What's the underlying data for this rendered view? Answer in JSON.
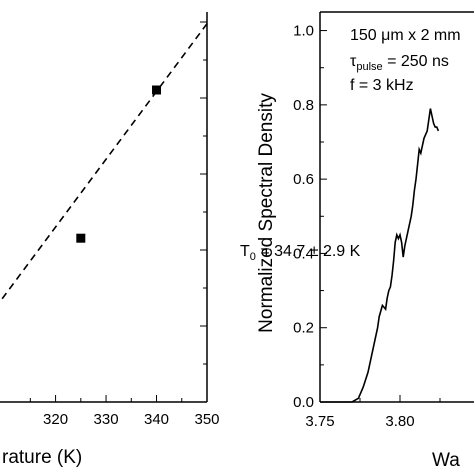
{
  "chart_data": [
    {
      "type": "scatter",
      "title": "",
      "xlabel": "rature (K)",
      "ylabel": "",
      "xlim": [
        308,
        350
      ],
      "ylim": [
        0,
        1
      ],
      "x_ticks": [
        "320",
        "330",
        "340",
        "350"
      ],
      "points": [
        {
          "x": 325,
          "y": 0.42
        },
        {
          "x": 340,
          "y": 0.8
        }
      ],
      "fit_line": {
        "style": "dashed",
        "x": [
          308,
          350
        ],
        "y": [
          0.24,
          0.97
        ]
      },
      "annotation": {
        "text": "T",
        "sub": "0",
        "rest": " = 34.7 ± 2.9 K"
      }
    },
    {
      "type": "line",
      "title": "",
      "xlabel": "Wa",
      "ylabel": "Normalized Spectral Density",
      "xlim": [
        3.75,
        3.85
      ],
      "ylim": [
        0,
        1.05
      ],
      "x_ticks": [
        "3.75",
        "3.80"
      ],
      "y_ticks": [
        "0.0",
        "0.2",
        "0.4",
        "0.6",
        "0.8",
        "1.0"
      ],
      "annotations": [
        {
          "id": "dim",
          "parts": [
            "150 ",
            "μ",
            "m x 2 mm"
          ]
        },
        {
          "id": "pulse",
          "parts": [
            "τ",
            "pulse",
            " = 250 ns"
          ]
        },
        {
          "id": "freq",
          "parts": [
            "f = 3 kHz"
          ]
        }
      ],
      "series": [
        {
          "x": [
            3.75,
            3.765,
            3.77,
            3.774,
            3.777,
            3.78,
            3.782,
            3.784,
            3.786,
            3.787,
            3.789,
            3.791,
            3.792,
            3.793,
            3.794,
            3.795,
            3.796,
            3.797,
            3.798,
            3.799,
            3.8,
            3.801,
            3.802,
            3.803,
            3.805,
            3.807,
            3.808,
            3.809,
            3.81,
            3.811,
            3.812,
            3.813,
            3.815,
            3.817,
            3.818,
            3.819,
            3.82,
            3.821,
            3.822,
            3.823,
            3.824
          ],
          "y": [
            0.0,
            0.0,
            0.0,
            0.01,
            0.04,
            0.08,
            0.12,
            0.16,
            0.2,
            0.23,
            0.26,
            0.25,
            0.28,
            0.3,
            0.31,
            0.34,
            0.38,
            0.43,
            0.45,
            0.44,
            0.45,
            0.43,
            0.39,
            0.42,
            0.46,
            0.5,
            0.53,
            0.57,
            0.6,
            0.64,
            0.68,
            0.67,
            0.71,
            0.73,
            0.76,
            0.79,
            0.77,
            0.75,
            0.74,
            0.74,
            0.73
          ]
        }
      ]
    }
  ]
}
